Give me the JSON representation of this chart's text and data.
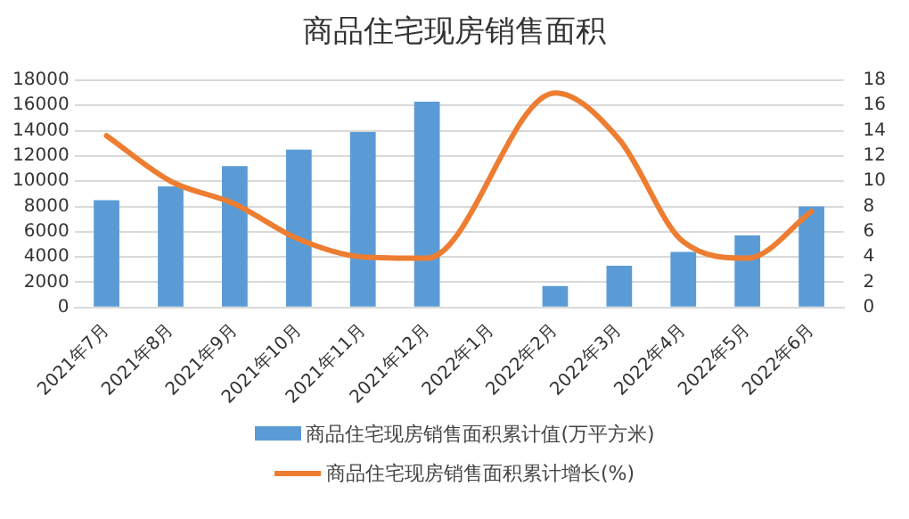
{
  "chart_data": {
    "type": "bar",
    "title": "商品住宅现房销售面积",
    "categories": [
      "2021年7月",
      "2021年8月",
      "2021年9月",
      "2021年10月",
      "2021年11月",
      "2021年12月",
      "2022年1月",
      "2022年2月",
      "2022年3月",
      "2022年4月",
      "2022年5月",
      "2022年6月"
    ],
    "series": [
      {
        "name": "商品住宅现房销售面积累计值(万平方米)",
        "color": "#5b9bd5",
        "values": [
          8500,
          9600,
          11200,
          12500,
          13900,
          16300,
          null,
          1700,
          3300,
          4400,
          5700,
          8000
        ]
      },
      {
        "name": "商品住宅现房销售面积累计增长(%)",
        "type": "line",
        "axis": "y2",
        "color": "#ed7d31",
        "values": [
          13.6,
          10.0,
          8.2,
          5.4,
          4.0,
          3.9,
          null,
          17.0,
          13.3,
          5.2,
          3.9,
          7.6
        ]
      }
    ],
    "ylim": [
      0,
      18000
    ],
    "yticks": [
      0,
      2000,
      4000,
      6000,
      8000,
      10000,
      12000,
      14000,
      16000,
      18000
    ],
    "y2lim": [
      0,
      18
    ],
    "y2ticks": [
      0,
      2,
      4,
      6,
      8,
      10,
      12,
      14,
      16,
      18
    ],
    "grid": "y",
    "legend": "bottom",
    "marker": "none"
  }
}
